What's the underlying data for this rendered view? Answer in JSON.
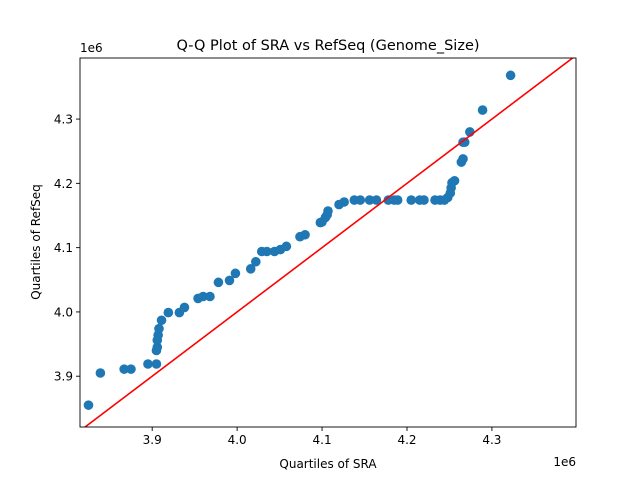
{
  "chart_data": {
    "type": "scatter",
    "title": "Q-Q Plot of SRA vs RefSeq (Genome_Size)",
    "xlabel": "Quartiles of SRA",
    "ylabel": "Quartiles of RefSeq",
    "x_offset_label": "1e6",
    "y_offset_label": "1e6",
    "xlim": [
      3.815,
      4.399
    ],
    "ylim": [
      3.821,
      4.395
    ],
    "x_ticks": [
      3.9,
      4.0,
      4.1,
      4.2,
      4.3
    ],
    "x_tick_labels": [
      "3.9",
      "4.0",
      "4.1",
      "4.2",
      "4.3"
    ],
    "y_ticks": [
      3.9,
      4.0,
      4.1,
      4.2,
      4.3
    ],
    "y_tick_labels": [
      "3.9",
      "4.0",
      "4.1",
      "4.2",
      "4.3"
    ],
    "grid": false,
    "point_color": "#1f77b4",
    "reference_line": {
      "type": "y=x",
      "color": "#ff0000"
    },
    "points": [
      [
        3.825,
        3.855
      ],
      [
        3.839,
        3.905
      ],
      [
        3.867,
        3.911
      ],
      [
        3.875,
        3.911
      ],
      [
        3.895,
        3.919
      ],
      [
        3.905,
        3.919
      ],
      [
        3.905,
        3.94
      ],
      [
        3.906,
        3.945
      ],
      [
        3.906,
        3.956
      ],
      [
        3.907,
        3.964
      ],
      [
        3.908,
        3.974
      ],
      [
        3.911,
        3.987
      ],
      [
        3.919,
        3.999
      ],
      [
        3.932,
        3.999
      ],
      [
        3.938,
        4.007
      ],
      [
        3.954,
        4.021
      ],
      [
        3.96,
        4.024
      ],
      [
        3.968,
        4.024
      ],
      [
        3.978,
        4.046
      ],
      [
        3.991,
        4.049
      ],
      [
        3.998,
        4.06
      ],
      [
        4.016,
        4.067
      ],
      [
        4.022,
        4.078
      ],
      [
        4.029,
        4.094
      ],
      [
        4.035,
        4.094
      ],
      [
        4.044,
        4.094
      ],
      [
        4.051,
        4.097
      ],
      [
        4.058,
        4.102
      ],
      [
        4.074,
        4.117
      ],
      [
        4.08,
        4.12
      ],
      [
        4.098,
        4.139
      ],
      [
        4.1,
        4.14
      ],
      [
        4.104,
        4.147
      ],
      [
        4.106,
        4.151
      ],
      [
        4.107,
        4.157
      ],
      [
        4.12,
        4.167
      ],
      [
        4.126,
        4.171
      ],
      [
        4.138,
        4.174
      ],
      [
        4.145,
        4.174
      ],
      [
        4.156,
        4.174
      ],
      [
        4.164,
        4.174
      ],
      [
        4.178,
        4.174
      ],
      [
        4.185,
        4.174
      ],
      [
        4.189,
        4.174
      ],
      [
        4.205,
        4.174
      ],
      [
        4.215,
        4.174
      ],
      [
        4.22,
        4.174
      ],
      [
        4.233,
        4.174
      ],
      [
        4.239,
        4.174
      ],
      [
        4.244,
        4.174
      ],
      [
        4.248,
        4.178
      ],
      [
        4.251,
        4.185
      ],
      [
        4.252,
        4.193
      ],
      [
        4.253,
        4.201
      ],
      [
        4.256,
        4.204
      ],
      [
        4.264,
        4.233
      ],
      [
        4.266,
        4.238
      ],
      [
        4.266,
        4.264
      ],
      [
        4.268,
        4.264
      ],
      [
        4.274,
        4.28
      ],
      [
        4.289,
        4.314
      ],
      [
        4.322,
        4.368
      ]
    ]
  }
}
